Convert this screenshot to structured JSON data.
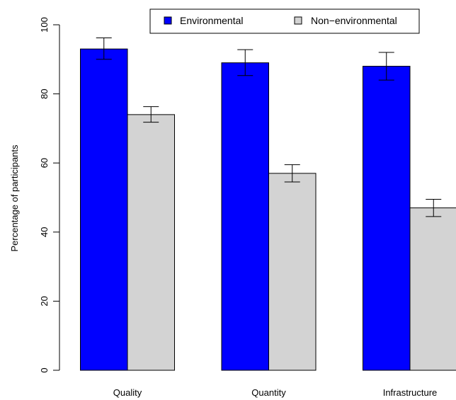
{
  "chart_data": {
    "type": "bar",
    "title": "",
    "xlabel": "",
    "ylabel": "Percentage of participants",
    "ylim": [
      0,
      100
    ],
    "yticks": [
      0,
      20,
      40,
      60,
      80,
      100
    ],
    "grid": false,
    "legend_position": "top-right",
    "categories": [
      "Quality",
      "Quantity",
      "Infrastructure"
    ],
    "series": [
      {
        "name": "Environmental",
        "color": "#0000ff",
        "values": [
          93,
          89,
          88
        ],
        "error_low": [
          90,
          85.3,
          84
        ],
        "error_high": [
          96.2,
          92.8,
          92
        ]
      },
      {
        "name": "Non−environmental",
        "color": "#d3d3d3",
        "values": [
          74,
          57,
          47
        ],
        "error_low": [
          71.8,
          54.5,
          44.5
        ],
        "error_high": [
          76.3,
          59.5,
          49.5
        ]
      }
    ]
  }
}
